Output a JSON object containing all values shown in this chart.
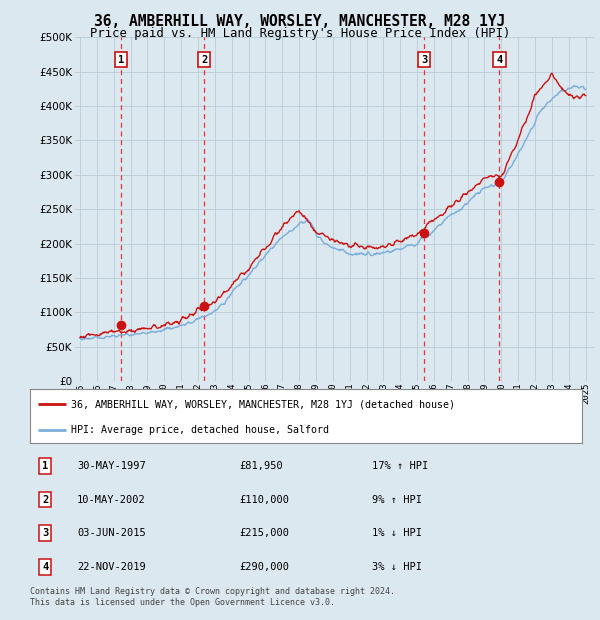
{
  "title": "36, AMBERHILL WAY, WORSLEY, MANCHESTER, M28 1YJ",
  "subtitle": "Price paid vs. HM Land Registry's House Price Index (HPI)",
  "footer": "Contains HM Land Registry data © Crown copyright and database right 2024.\nThis data is licensed under the Open Government Licence v3.0.",
  "legend_line1": "36, AMBERHILL WAY, WORSLEY, MANCHESTER, M28 1YJ (detached house)",
  "legend_line2": "HPI: Average price, detached house, Salford",
  "sales": [
    {
      "num": 1,
      "date": "30-MAY-1997",
      "year": 1997.41,
      "price": 81950,
      "hpi_pct": "17% ↑ HPI"
    },
    {
      "num": 2,
      "date": "10-MAY-2002",
      "year": 2002.36,
      "price": 110000,
      "hpi_pct": "9% ↑ HPI"
    },
    {
      "num": 3,
      "date": "03-JUN-2015",
      "year": 2015.42,
      "price": 215000,
      "hpi_pct": "1% ↓ HPI"
    },
    {
      "num": 4,
      "date": "22-NOV-2019",
      "year": 2019.89,
      "price": 290000,
      "hpi_pct": "3% ↓ HPI"
    }
  ],
  "ylim": [
    0,
    500000
  ],
  "yticks": [
    0,
    50000,
    100000,
    150000,
    200000,
    250000,
    300000,
    350000,
    400000,
    450000,
    500000
  ],
  "xlim_start": 1994.7,
  "xlim_end": 2025.5,
  "xticks": [
    1995,
    1996,
    1997,
    1998,
    1999,
    2000,
    2001,
    2002,
    2003,
    2004,
    2005,
    2006,
    2007,
    2008,
    2009,
    2010,
    2011,
    2012,
    2013,
    2014,
    2015,
    2016,
    2017,
    2018,
    2019,
    2020,
    2021,
    2022,
    2023,
    2024,
    2025
  ],
  "hpi_color": "#7aaddb",
  "price_color": "#cc1111",
  "dashed_color": "#ee3333",
  "bg_color": "#dce8f0",
  "plot_bg": "#dce8f0",
  "grid_color": "#b8ccd8",
  "sale_dot_color": "#cc1111",
  "sale_dot_size": 7,
  "hpi_anchors": [
    [
      1995.0,
      62000
    ],
    [
      1997.0,
      65000
    ],
    [
      1999.0,
      70000
    ],
    [
      2001.0,
      80000
    ],
    [
      2003.0,
      100000
    ],
    [
      2005.0,
      155000
    ],
    [
      2007.0,
      210000
    ],
    [
      2008.5,
      235000
    ],
    [
      2009.5,
      200000
    ],
    [
      2011.0,
      185000
    ],
    [
      2013.0,
      185000
    ],
    [
      2015.0,
      200000
    ],
    [
      2017.0,
      240000
    ],
    [
      2019.0,
      280000
    ],
    [
      2020.0,
      290000
    ],
    [
      2021.0,
      330000
    ],
    [
      2022.5,
      400000
    ],
    [
      2023.5,
      420000
    ],
    [
      2024.5,
      430000
    ],
    [
      2025.0,
      425000
    ]
  ],
  "price_anchors": [
    [
      1995.0,
      66000
    ],
    [
      1997.0,
      72000
    ],
    [
      1999.0,
      76000
    ],
    [
      2001.0,
      88000
    ],
    [
      2003.0,
      115000
    ],
    [
      2005.0,
      165000
    ],
    [
      2007.0,
      225000
    ],
    [
      2008.0,
      250000
    ],
    [
      2009.0,
      215000
    ],
    [
      2011.0,
      195000
    ],
    [
      2013.0,
      195000
    ],
    [
      2015.0,
      215000
    ],
    [
      2017.0,
      255000
    ],
    [
      2019.0,
      295000
    ],
    [
      2020.0,
      300000
    ],
    [
      2021.0,
      350000
    ],
    [
      2022.0,
      415000
    ],
    [
      2023.0,
      445000
    ],
    [
      2024.0,
      415000
    ],
    [
      2025.0,
      415000
    ]
  ]
}
